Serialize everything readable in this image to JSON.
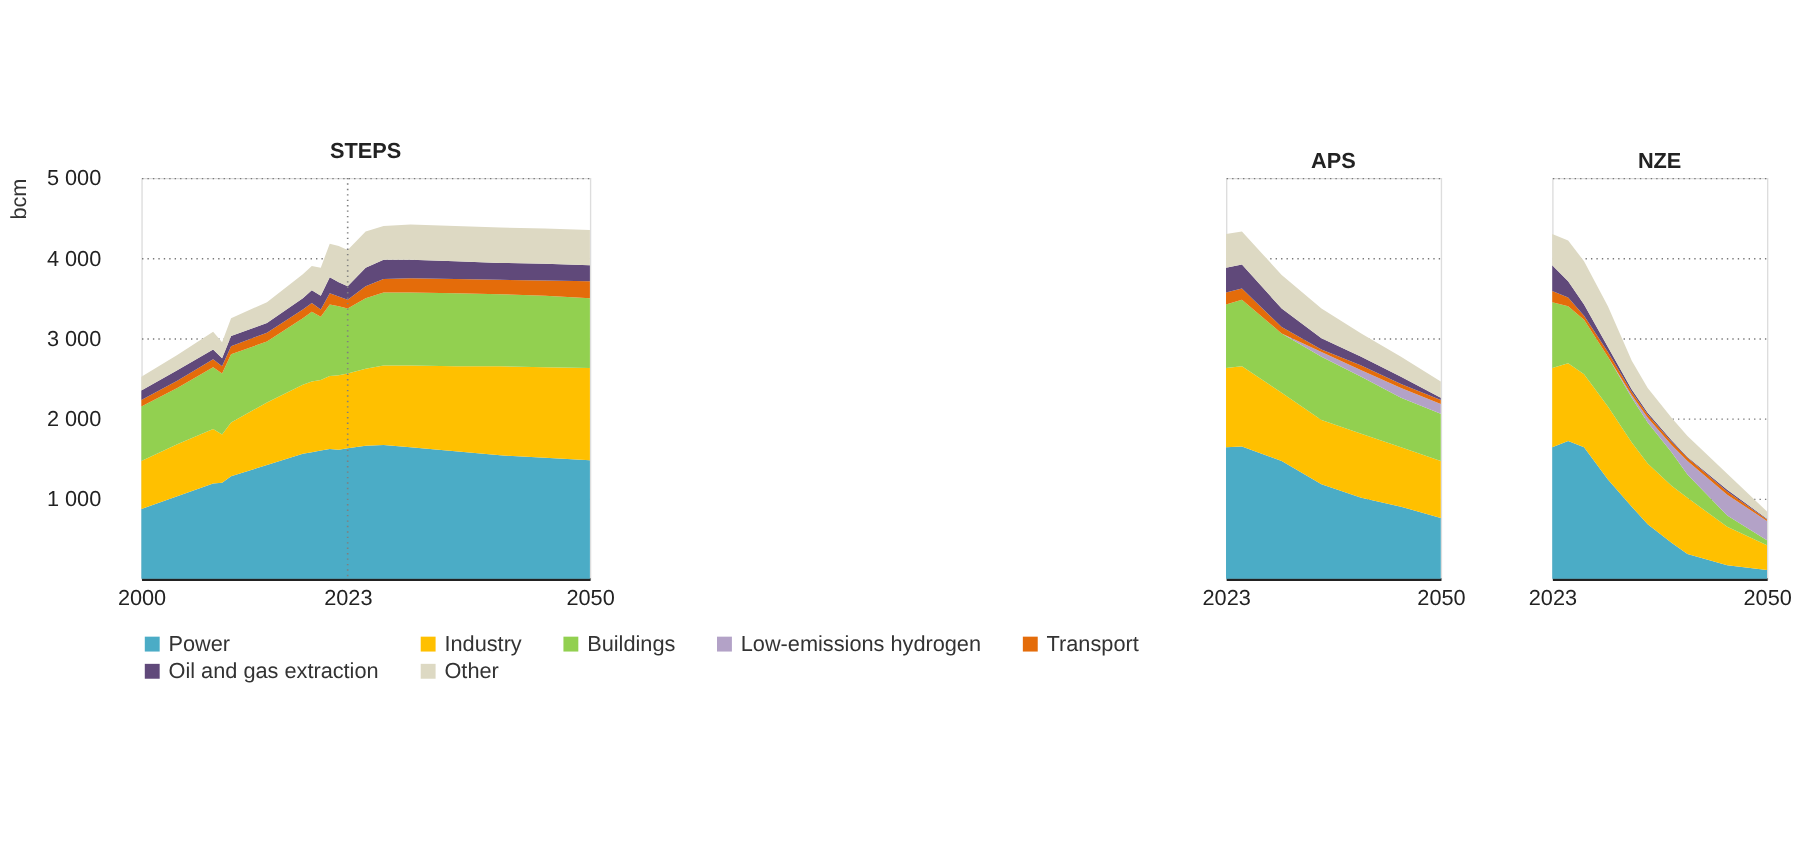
{
  "chart_data": [
    {
      "type": "area",
      "title": "STEPS",
      "ylabel": "bcm",
      "stacked": true,
      "legend": "bottom",
      "grid": "y",
      "x": [
        2000,
        2004,
        2008,
        2009,
        2010,
        2014,
        2018,
        2019,
        2020,
        2021,
        2022,
        2023,
        2025,
        2027,
        2030,
        2035,
        2040,
        2045,
        2050
      ],
      "xlim": [
        2000,
        2050
      ],
      "xticks": [
        2000,
        2023,
        2050
      ],
      "ylim": [
        0,
        5000
      ],
      "yticks": [
        {
          "value": 1000,
          "label": "1 000"
        },
        {
          "value": 2000,
          "label": "2 000"
        },
        {
          "value": 3000,
          "label": "3 000"
        },
        {
          "value": 4000,
          "label": "4 000"
        },
        {
          "value": 5000,
          "label": "5 000"
        }
      ],
      "ref_lines": [
        {
          "axis": "x",
          "value": 2023,
          "color": "#7f7f7f",
          "line_style": "dotted"
        }
      ],
      "series": [
        {
          "name": "Power",
          "color": "#4bacc6",
          "values": [
            870,
            1030,
            1190,
            1200,
            1280,
            1420,
            1560,
            1580,
            1600,
            1620,
            1610,
            1630,
            1660,
            1670,
            1640,
            1590,
            1540,
            1510,
            1480
          ]
        },
        {
          "name": "Industry",
          "color": "#ffc000",
          "values": [
            600,
            650,
            680,
            600,
            670,
            780,
            860,
            880,
            880,
            910,
            930,
            930,
            960,
            990,
            1020,
            1060,
            1110,
            1130,
            1150
          ]
        },
        {
          "name": "Buildings",
          "color": "#92d050",
          "values": [
            680,
            700,
            770,
            760,
            850,
            760,
            830,
            870,
            790,
            890,
            860,
            810,
            880,
            910,
            910,
            910,
            900,
            890,
            870
          ]
        },
        {
          "name": "Low-emissions hydrogen",
          "color": "#b3a2c7",
          "values": [
            null,
            null,
            null,
            null,
            null,
            null,
            null,
            null,
            null,
            null,
            null,
            null,
            null,
            null,
            null,
            null,
            null,
            null,
            null
          ]
        },
        {
          "name": "Transport",
          "color": "#e46c0a",
          "values": [
            80,
            90,
            100,
            90,
            100,
            110,
            110,
            110,
            90,
            140,
            120,
            110,
            150,
            170,
            180,
            180,
            180,
            190,
            210
          ]
        },
        {
          "name": "Oil and gas extraction",
          "color": "#60497a",
          "values": [
            120,
            130,
            120,
            100,
            130,
            120,
            140,
            160,
            170,
            200,
            180,
            170,
            230,
            240,
            230,
            220,
            210,
            210,
            200
          ]
        },
        {
          "name": "Other",
          "color": "#ddd9c3",
          "values": [
            170,
            190,
            220,
            200,
            220,
            260,
            300,
            300,
            350,
            420,
            450,
            450,
            450,
            420,
            440,
            440,
            440,
            440,
            440
          ]
        }
      ]
    },
    {
      "type": "area",
      "title": "APS",
      "stacked": true,
      "grid": "y",
      "tick_labels": "x",
      "x": [
        2023,
        2025,
        2030,
        2035,
        2040,
        2045,
        2050
      ],
      "xlim": [
        2023,
        2050
      ],
      "xticks": [
        2023,
        2050
      ],
      "ylim": [
        0,
        5000
      ],
      "yticks": [
        1000,
        2000,
        3000,
        4000,
        5000
      ],
      "series": [
        {
          "color": "#4bacc6",
          "values": [
            1640,
            1650,
            1470,
            1180,
            1010,
            900,
            760
          ]
        },
        {
          "color": "#ffc000",
          "values": [
            990,
            1000,
            850,
            800,
            800,
            740,
            710
          ]
        },
        {
          "color": "#92d050",
          "values": [
            790,
            830,
            740,
            790,
            710,
            620,
            590
          ]
        },
        {
          "color": "#b3a2c7",
          "values": [
            null,
            null,
            0,
            60,
            80,
            120,
            120
          ]
        },
        {
          "color": "#e46c0a",
          "values": [
            150,
            140,
            80,
            30,
            60,
            50,
            50
          ]
        },
        {
          "color": "#60497a",
          "values": [
            310,
            300,
            230,
            140,
            110,
            90,
            30
          ]
        },
        {
          "color": "#ddd9c3",
          "values": [
            420,
            410,
            420,
            370,
            290,
            250,
            200
          ]
        }
      ]
    },
    {
      "type": "area",
      "title": "NZE",
      "stacked": true,
      "grid": "y",
      "tick_labels": "x",
      "x": [
        2023,
        2025,
        2027,
        2030,
        2033,
        2035,
        2038,
        2040,
        2045,
        2050
      ],
      "xlim": [
        2023,
        2050
      ],
      "xticks": [
        2023,
        2050
      ],
      "ylim": [
        0,
        5000
      ],
      "yticks": [
        1000,
        2000,
        3000,
        4000,
        5000
      ],
      "series": [
        {
          "color": "#4bacc6",
          "values": [
            1640,
            1720,
            1640,
            1240,
            900,
            680,
            450,
            310,
            170,
            110
          ]
        },
        {
          "color": "#ffc000",
          "values": [
            990,
            970,
            910,
            910,
            800,
            760,
            710,
            700,
            480,
            310
          ]
        },
        {
          "color": "#92d050",
          "values": [
            820,
            710,
            680,
            620,
            560,
            510,
            420,
            290,
            140,
            60
          ]
        },
        {
          "color": "#b3a2c7",
          "values": [
            null,
            null,
            null,
            0,
            30,
            60,
            90,
            170,
            260,
            240
          ]
        },
        {
          "color": "#e46c0a",
          "values": [
            140,
            110,
            50,
            60,
            40,
            40,
            40,
            40,
            40,
            20
          ]
        },
        {
          "color": "#60497a",
          "values": [
            320,
            200,
            140,
            60,
            30,
            20,
            20,
            10,
            20,
            10
          ]
        },
        {
          "color": "#ddd9c3",
          "values": [
            390,
            510,
            540,
            510,
            360,
            310,
            280,
            260,
            200,
            90
          ]
        }
      ]
    }
  ]
}
